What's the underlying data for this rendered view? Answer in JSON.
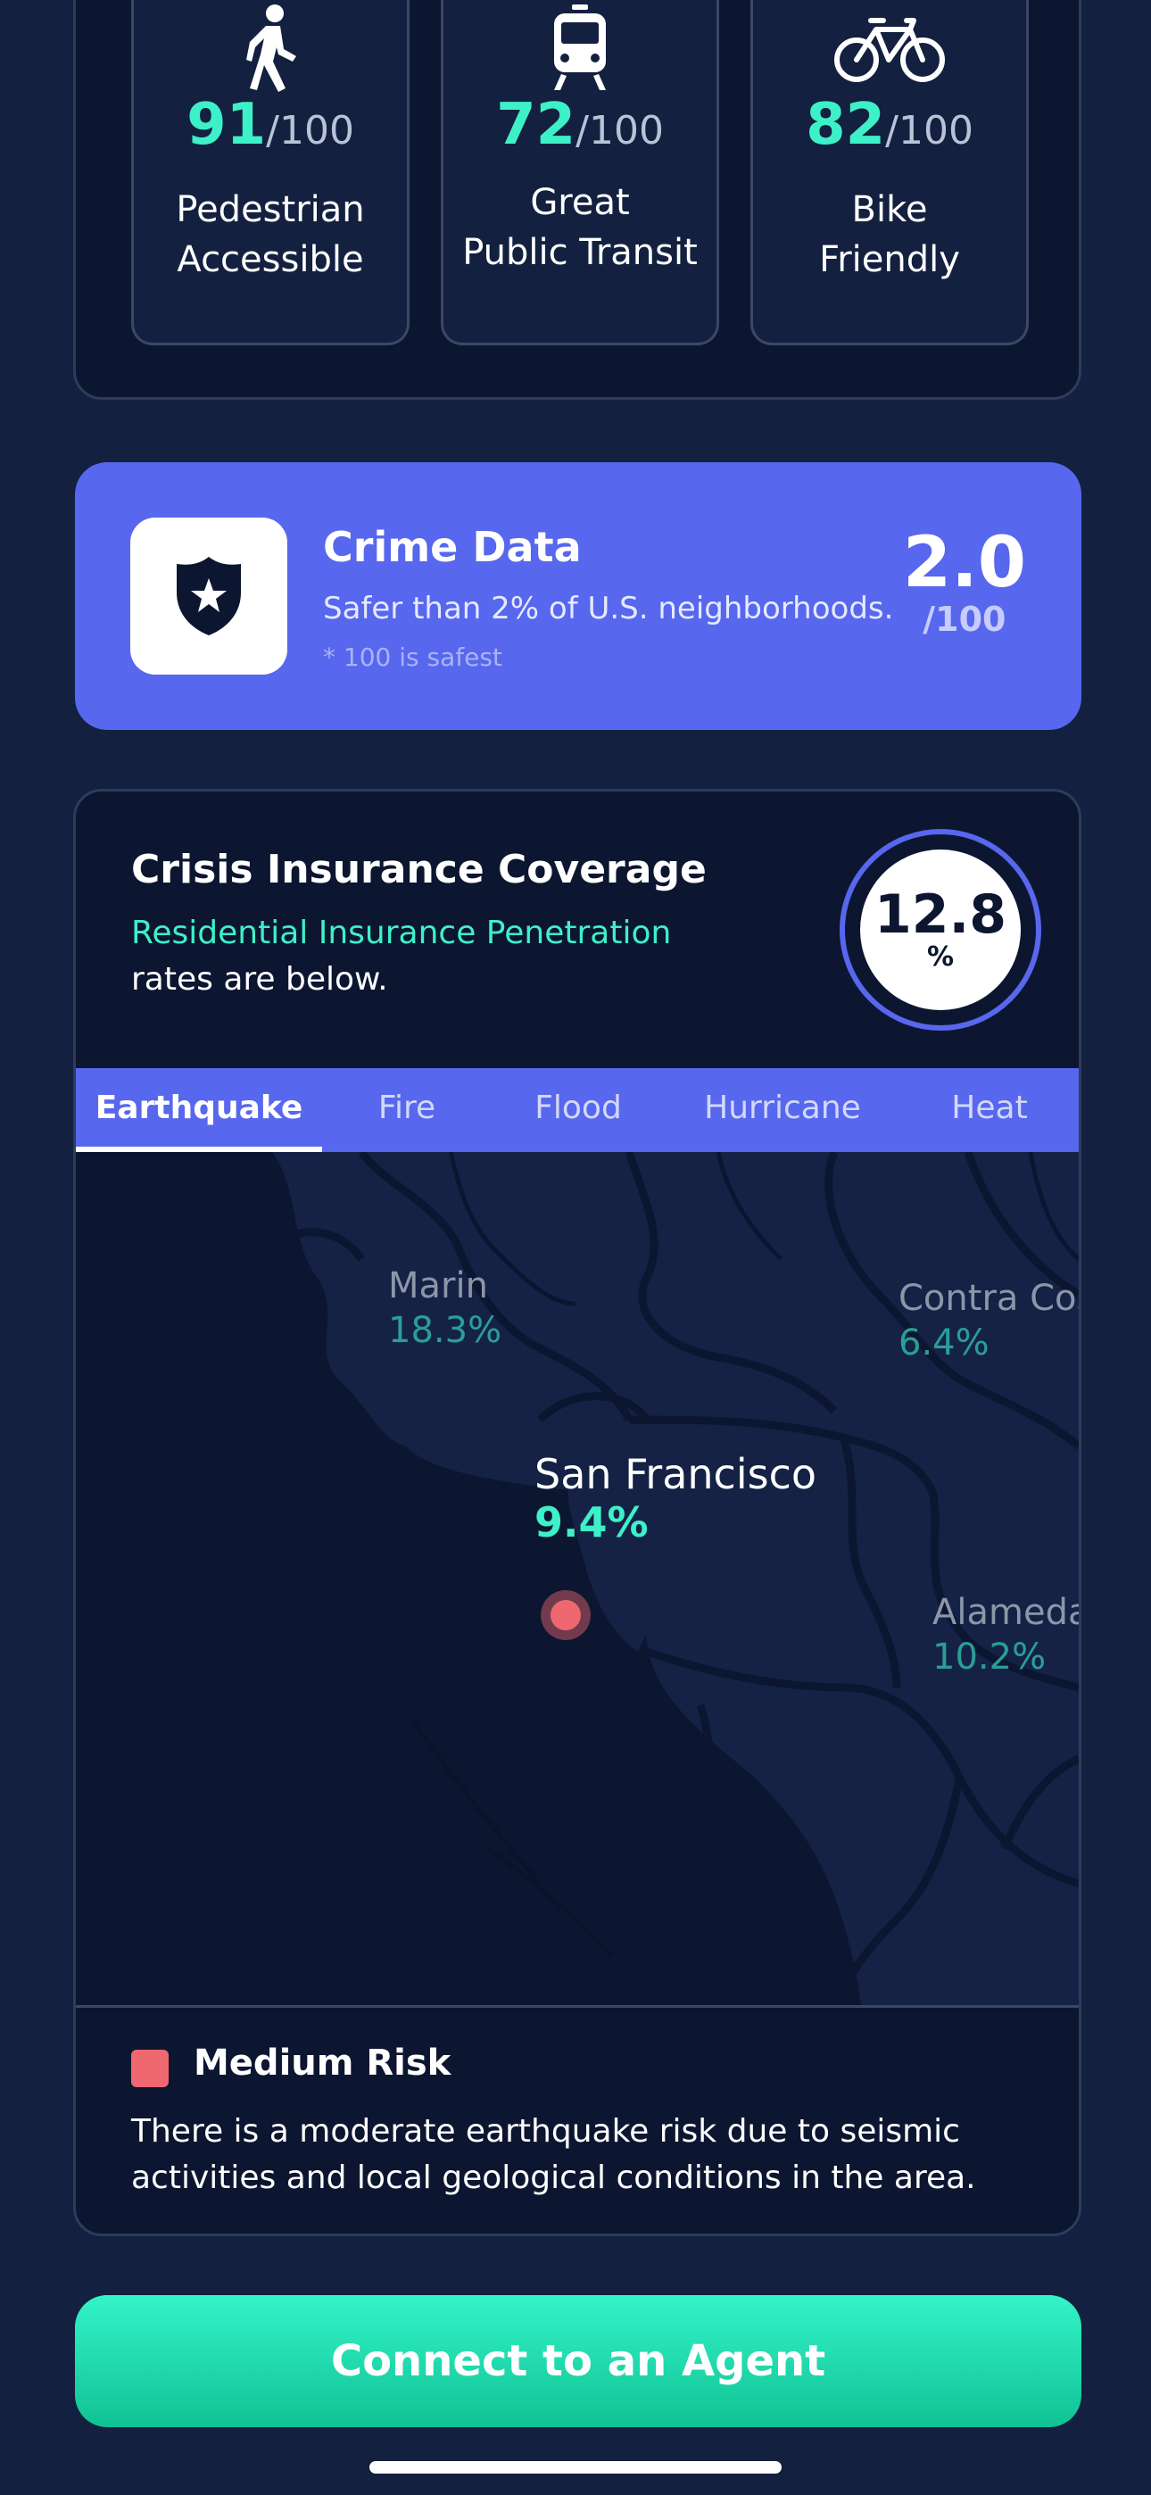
{
  "walk_scores": [
    {
      "icon": "pedestrian-icon",
      "score": "91",
      "out_of": "/100",
      "label_line1": "Pedestrian",
      "label_line2": "Accessible"
    },
    {
      "icon": "train-icon",
      "score": "72",
      "out_of": "/100",
      "label_line1": "Great",
      "label_line2": "Public Transit"
    },
    {
      "icon": "bicycle-icon",
      "score": "82",
      "out_of": "/100",
      "label_line1": "Bike",
      "label_line2": "Friendly"
    }
  ],
  "crime": {
    "icon": "police-badge-icon",
    "title": "Crime Data",
    "subtitle": "Safer than 2% of U.S. neighborhoods.",
    "note": "* 100 is safest",
    "score": "2.0",
    "out_of": "/100"
  },
  "insurance": {
    "title": "Crisis Insurance Coverage",
    "link_text": "Residential Insurance Penetration",
    "text": "rates are below.",
    "gauge_value": "12.8",
    "gauge_unit": "%",
    "tabs": [
      {
        "label": "Earthquake",
        "active": true
      },
      {
        "label": "Fire",
        "active": false
      },
      {
        "label": "Flood",
        "active": false
      },
      {
        "label": "Hurricane",
        "active": false
      },
      {
        "label": "Heat",
        "active": false
      }
    ],
    "map": {
      "regions": [
        {
          "name": "Marin",
          "value": "18.3%"
        },
        {
          "name": "Contra Cost",
          "value": "6.4%"
        },
        {
          "name": "Alameda",
          "value": "10.2%"
        }
      ],
      "selected": {
        "name": "San Francisco",
        "value": "9.4%"
      }
    },
    "risk": {
      "level": "Medium Risk",
      "color": "#ef6870",
      "description": "There is a moderate earthquake risk due to seismic activities and local geological conditions in the area."
    }
  },
  "cta": {
    "label": "Connect to an Agent"
  },
  "colors": {
    "accent": "#5767ee",
    "teal": "#3ef0c8",
    "background": "#13203f",
    "card": "#0c1630"
  }
}
